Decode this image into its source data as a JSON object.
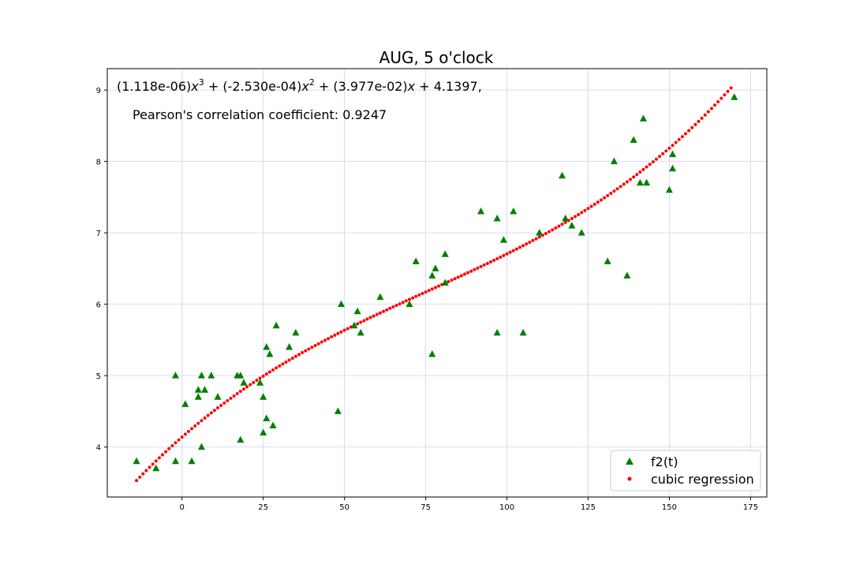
{
  "chart_data": {
    "type": "scatter",
    "title": "AUG, 5 o'clock",
    "xlabel": "",
    "ylabel": "",
    "xlim": [
      -23,
      180
    ],
    "ylim": [
      3.3,
      9.3
    ],
    "xticks": [
      0,
      25,
      50,
      75,
      100,
      125,
      150,
      175
    ],
    "yticks": [
      4,
      5,
      6,
      7,
      8,
      9
    ],
    "grid": true,
    "legend_position": "lower-right",
    "annotation": {
      "equation_parts": [
        "(1.118e-06)",
        "x",
        "3",
        " + (-2.530e-04)",
        "x",
        "2",
        " + (3.977e-02)",
        "x",
        " + 4.1397,"
      ],
      "pearson": "Pearson's correlation coefficient: 0.9247"
    },
    "series": [
      {
        "name": "f2(t)",
        "marker": "triangle",
        "color": "#008000",
        "points": [
          [
            -14,
            3.8
          ],
          [
            -8,
            3.7
          ],
          [
            -2,
            3.8
          ],
          [
            -2,
            5.0
          ],
          [
            1,
            4.6
          ],
          [
            3,
            3.8
          ],
          [
            5,
            4.7
          ],
          [
            5,
            4.8
          ],
          [
            6,
            5.0
          ],
          [
            6,
            4.0
          ],
          [
            7,
            4.8
          ],
          [
            9,
            5.0
          ],
          [
            11,
            4.7
          ],
          [
            17,
            5.0
          ],
          [
            18,
            5.0
          ],
          [
            18,
            4.1
          ],
          [
            19,
            4.9
          ],
          [
            24,
            4.9
          ],
          [
            25,
            4.7
          ],
          [
            25,
            4.2
          ],
          [
            26,
            5.4
          ],
          [
            26,
            4.4
          ],
          [
            27,
            5.3
          ],
          [
            28,
            4.3
          ],
          [
            29,
            5.7
          ],
          [
            33,
            5.4
          ],
          [
            35,
            5.6
          ],
          [
            48,
            4.5
          ],
          [
            49,
            6.0
          ],
          [
            53,
            5.7
          ],
          [
            54,
            5.9
          ],
          [
            55,
            5.6
          ],
          [
            61,
            6.1
          ],
          [
            70,
            6.0
          ],
          [
            72,
            6.6
          ],
          [
            77,
            6.4
          ],
          [
            77,
            5.3
          ],
          [
            78,
            6.5
          ],
          [
            81,
            6.3
          ],
          [
            81,
            6.7
          ],
          [
            92,
            7.3
          ],
          [
            97,
            7.2
          ],
          [
            97,
            5.6
          ],
          [
            99,
            6.9
          ],
          [
            102,
            7.3
          ],
          [
            105,
            5.6
          ],
          [
            110,
            7.0
          ],
          [
            117,
            7.8
          ],
          [
            118,
            7.2
          ],
          [
            120,
            7.1
          ],
          [
            123,
            7.0
          ],
          [
            131,
            6.6
          ],
          [
            133,
            8.0
          ],
          [
            137,
            6.4
          ],
          [
            139,
            8.3
          ],
          [
            141,
            7.7
          ],
          [
            142,
            8.6
          ],
          [
            143,
            7.7
          ],
          [
            150,
            7.6
          ],
          [
            151,
            8.1
          ],
          [
            151,
            7.9
          ],
          [
            170,
            8.9
          ]
        ]
      },
      {
        "name": "cubic regression",
        "marker": "dot",
        "color": "#ff0000",
        "fit": {
          "type": "cubic",
          "coefficients": [
            1.118e-06,
            -0.000253,
            0.03977,
            4.1397
          ],
          "x_start": -14,
          "x_end": 169
        }
      }
    ]
  }
}
